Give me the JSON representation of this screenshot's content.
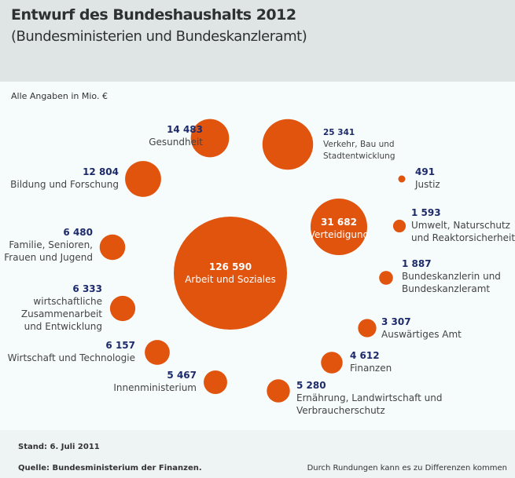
{
  "header": {
    "title": "Entwurf des Bundeshaushalts 2012",
    "subtitle": "(Bundesministerien und Bundeskanzleramt)"
  },
  "unit_note": "Alle Angaben in Mio. €",
  "footer": {
    "stand": "Stand: 6. Juli 2011",
    "source": "Quelle: Bundesministerium der Finanzen.",
    "note": "Durch Rundungen kann es zu Differenzen kommen"
  },
  "colors": {
    "bubble": "#e0540e",
    "value": "#1d2a6b",
    "header_bg": "#dfe4e4"
  },
  "chart_data": {
    "type": "bubble",
    "unit": "Mio. €",
    "items": [
      {
        "label": "Arbeit und Soziales",
        "value": 126590,
        "value_text": "126 590"
      },
      {
        "label": "Verteidigung",
        "value": 31682,
        "value_text": "31 682"
      },
      {
        "label": "Verkehr, Bau und\nStadtentwicklung",
        "value": 25341,
        "value_text": "25 341"
      },
      {
        "label": "Gesundheit",
        "value": 14483,
        "value_text": "14 483"
      },
      {
        "label": "Bildung und Forschung",
        "value": 12804,
        "value_text": "12 804"
      },
      {
        "label": "Familie, Senioren,\nFrauen und Jugend",
        "value": 6480,
        "value_text": "6 480"
      },
      {
        "label": "wirtschaftliche\nZusammenarbeit\nund Entwicklung",
        "value": 6333,
        "value_text": "6 333"
      },
      {
        "label": "Wirtschaft und Technologie",
        "value": 6157,
        "value_text": "6 157"
      },
      {
        "label": "Innenministerium",
        "value": 5467,
        "value_text": "5 467"
      },
      {
        "label": "Ernährung, Landwirtschaft und\nVerbraucherschutz",
        "value": 5280,
        "value_text": "5 280"
      },
      {
        "label": "Finanzen",
        "value": 4612,
        "value_text": "4 612"
      },
      {
        "label": "Auswärtiges Amt",
        "value": 3307,
        "value_text": "3 307"
      },
      {
        "label": "Bundeskanzlerin und\nBundeskanzleramt",
        "value": 1887,
        "value_text": "1 887"
      },
      {
        "label": "Umwelt, Naturschutz\nund Reaktorsicherheit",
        "value": 1593,
        "value_text": "1 593"
      },
      {
        "label": "Justiz",
        "value": 491,
        "value_text": "491"
      }
    ]
  }
}
